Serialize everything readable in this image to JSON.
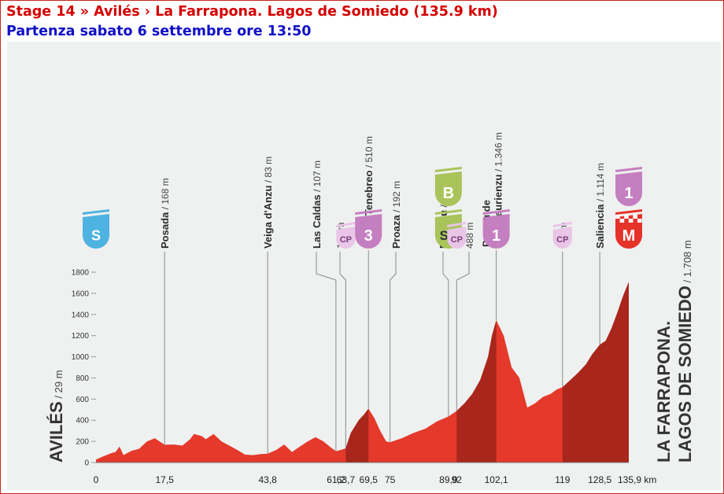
{
  "header": {
    "title": "Stage 14 » Avilés › La Farrapona. Lagos de Somiedo (135.9 km)",
    "subtitle": "Partenza sabato 6 settembre ore 13:50"
  },
  "colors": {
    "profile_fill": "#e4392b",
    "climb_fill": "#a8261c",
    "badge_start": "#4eb3e0",
    "badge_climb": "#c47fc0",
    "badge_cp": "#e9c5e7",
    "badge_sprint": "#a8c45a",
    "badge_finish": "#e5332a"
  },
  "chart_data": {
    "type": "area",
    "xlabel": "",
    "ylabel": "",
    "xlim": [
      0,
      135.9
    ],
    "ylim": [
      0,
      1800
    ],
    "y_ticks": [
      0,
      200,
      400,
      600,
      800,
      1000,
      1200,
      1400,
      1600,
      1800
    ],
    "x_ticks": [
      {
        "value": 0,
        "label": "0"
      },
      {
        "value": 17.5,
        "label": "17,5"
      },
      {
        "value": 43.8,
        "label": "43,8"
      },
      {
        "value": 61.2,
        "label": "61,2"
      },
      {
        "value": 63.7,
        "label": "63,7"
      },
      {
        "value": 69.5,
        "label": "69,5"
      },
      {
        "value": 75,
        "label": "75"
      },
      {
        "value": 89.9,
        "label": "89,9"
      },
      {
        "value": 92,
        "label": "92"
      },
      {
        "value": 102.1,
        "label": "102,1"
      },
      {
        "value": 119,
        "label": "119"
      },
      {
        "value": 128.5,
        "label": "128,5"
      },
      {
        "value": 135.9,
        "label": "135,9 km"
      }
    ],
    "profile": [
      [
        0,
        29
      ],
      [
        2,
        60
      ],
      [
        4,
        90
      ],
      [
        5,
        100
      ],
      [
        6,
        150
      ],
      [
        7,
        70
      ],
      [
        9,
        110
      ],
      [
        11,
        130
      ],
      [
        13,
        200
      ],
      [
        15,
        230
      ],
      [
        17.5,
        168
      ],
      [
        20,
        170
      ],
      [
        22,
        160
      ],
      [
        24,
        220
      ],
      [
        25,
        270
      ],
      [
        27,
        250
      ],
      [
        28,
        220
      ],
      [
        30,
        270
      ],
      [
        32,
        200
      ],
      [
        34,
        160
      ],
      [
        36,
        120
      ],
      [
        38,
        75
      ],
      [
        40,
        70
      ],
      [
        42,
        80
      ],
      [
        43.8,
        83
      ],
      [
        46,
        120
      ],
      [
        48,
        170
      ],
      [
        50,
        100
      ],
      [
        52,
        150
      ],
      [
        54,
        200
      ],
      [
        56,
        240
      ],
      [
        58,
        200
      ],
      [
        60,
        140
      ],
      [
        61.2,
        107
      ],
      [
        62.5,
        120
      ],
      [
        63.7,
        134
      ],
      [
        65,
        280
      ],
      [
        67,
        400
      ],
      [
        68.5,
        460
      ],
      [
        69.5,
        510
      ],
      [
        71,
        420
      ],
      [
        72.5,
        300
      ],
      [
        74,
        200
      ],
      [
        75,
        192
      ],
      [
        78,
        230
      ],
      [
        81,
        280
      ],
      [
        84,
        320
      ],
      [
        87,
        390
      ],
      [
        89.9,
        435
      ],
      [
        92,
        488
      ],
      [
        94,
        560
      ],
      [
        96,
        650
      ],
      [
        98,
        780
      ],
      [
        100,
        1000
      ],
      [
        101,
        1200
      ],
      [
        102.1,
        1346
      ],
      [
        104,
        1200
      ],
      [
        106,
        900
      ],
      [
        108,
        800
      ],
      [
        110,
        520
      ],
      [
        112,
        560
      ],
      [
        114,
        620
      ],
      [
        116,
        650
      ],
      [
        117.5,
        690
      ],
      [
        119,
        713
      ],
      [
        121,
        780
      ],
      [
        123,
        850
      ],
      [
        125,
        930
      ],
      [
        126.5,
        1020
      ],
      [
        128.5,
        1114
      ],
      [
        130,
        1150
      ],
      [
        131.5,
        1270
      ],
      [
        133,
        1420
      ],
      [
        134.5,
        1580
      ],
      [
        135.9,
        1708
      ]
    ],
    "climb_segments": [
      [
        63.7,
        69.5
      ],
      [
        92,
        102.1
      ],
      [
        119,
        135.9
      ]
    ],
    "start_label": {
      "name": "AVILÉS",
      "alt": " / 29 m"
    },
    "finish_label": {
      "line1": "LA FARRAPONA.",
      "line2": "LAGOS DE SOMIEDO",
      "alt": " / 1.708 m"
    },
    "points": [
      {
        "km": 17.5,
        "name": "Posada",
        "alt": " / 168 m"
      },
      {
        "km": 43.8,
        "name": "Veiga d'Anzu",
        "alt": " / 83 m"
      },
      {
        "km": 61.2,
        "name": "Las Caldas",
        "alt": " / 107 m"
      },
      {
        "km": 63.7,
        "name": "",
        "alt": "134 m"
      },
      {
        "km": 69.5,
        "name": "L'Alto Tenebreo",
        "alt": " / 510 m"
      },
      {
        "km": 75,
        "name": "Proaza",
        "alt": " / 192 m"
      },
      {
        "km": 89.9,
        "name": "Entragu",
        "alt": " / 435 m"
      },
      {
        "km": 92,
        "name": "",
        "alt": "488 m"
      },
      {
        "km": 102.1,
        "name": "Puertu de",
        "name2": "San Lļaurienzu",
        "alt": " / 1.346 m"
      },
      {
        "km": 119,
        "name": "",
        "alt": "713 m"
      },
      {
        "km": 128.5,
        "name": "Saliencia",
        "alt": " / 1.114 m"
      }
    ],
    "badges": [
      {
        "km": 0,
        "text": "S",
        "kind": "start"
      },
      {
        "km": 63.7,
        "text": "CP",
        "kind": "cp"
      },
      {
        "km": 69.5,
        "text": "3",
        "kind": "climb"
      },
      {
        "km": 89.9,
        "text": "B",
        "kind": "bonus"
      },
      {
        "km": 89.9,
        "text": "SP",
        "kind": "sprint"
      },
      {
        "km": 92,
        "text": "CP",
        "kind": "cp"
      },
      {
        "km": 102.1,
        "text": "1",
        "kind": "climb"
      },
      {
        "km": 119,
        "text": "CP",
        "kind": "cp"
      },
      {
        "km": 135.9,
        "text": "1",
        "kind": "climb-top"
      },
      {
        "km": 135.9,
        "text": "M",
        "kind": "finish"
      }
    ]
  }
}
